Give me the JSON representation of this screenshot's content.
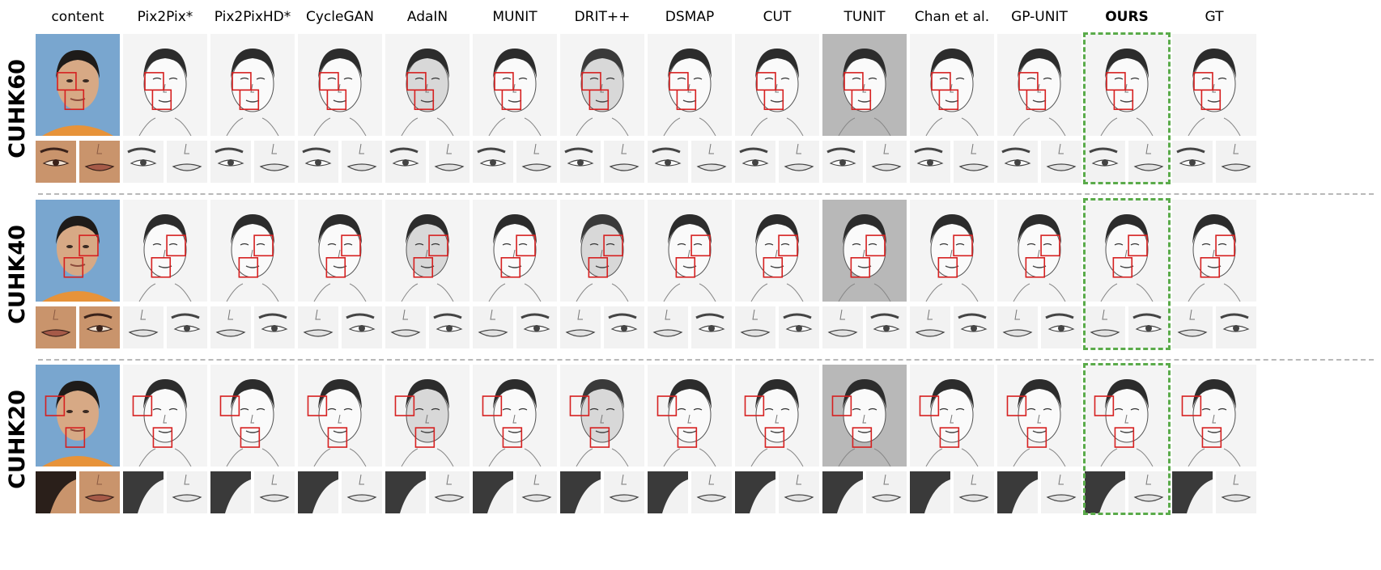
{
  "figure": {
    "columns": [
      "content",
      "Pix2Pix*",
      "Pix2PixHD*",
      "CycleGAN",
      "AdaIN",
      "MUNIT",
      "DRIT++",
      "DSMAP",
      "CUT",
      "TUNIT",
      "Chan et al.",
      "GP-UNIT",
      "OURS",
      "GT"
    ],
    "bold_column": "OURS",
    "rows": [
      {
        "label": "CUHK60",
        "zoom": "eye-mouth"
      },
      {
        "label": "CUHK40",
        "zoom": "mouth-eye"
      },
      {
        "label": "CUHK20",
        "zoom": "hair-mouth"
      }
    ]
  },
  "colors": {
    "highlight_box": "#d62020",
    "ours_border": "#5aab4a",
    "separator": "#b8b8b8",
    "content_background": "#79a6cf",
    "sketch_background": "#f4f4f4"
  }
}
